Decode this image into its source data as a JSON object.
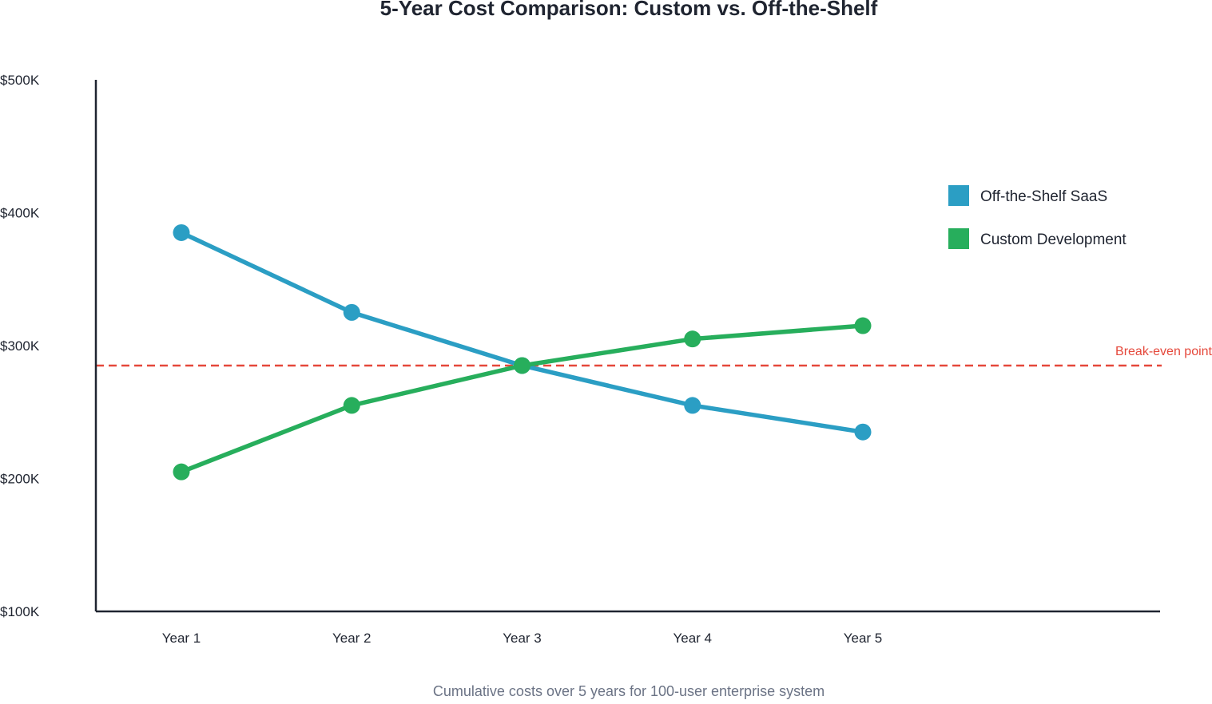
{
  "chart_data": {
    "type": "line",
    "title": "5-Year Cost Comparison: Custom vs. Off-the-Shelf",
    "caption": "Cumulative costs over 5 years for 100-user enterprise system",
    "xlabel": "",
    "ylabel": "",
    "categories": [
      "Year 1",
      "Year 2",
      "Year 3",
      "Year 4",
      "Year 5"
    ],
    "y_ticks": [
      {
        "value": 100000,
        "label": "$100K"
      },
      {
        "value": 200000,
        "label": "$200K"
      },
      {
        "value": 300000,
        "label": "$300K"
      },
      {
        "value": 400000,
        "label": "$400K"
      },
      {
        "value": 500000,
        "label": "$500K"
      }
    ],
    "ylim": [
      100000,
      500000
    ],
    "grid": false,
    "legend_position": "top-right",
    "series": [
      {
        "name": "Off-the-Shelf SaaS",
        "color": "#2b9ec4",
        "values": [
          385000,
          325000,
          285000,
          255000,
          235000
        ]
      },
      {
        "name": "Custom Development",
        "color": "#27ae5c",
        "values": [
          205000,
          255000,
          285000,
          305000,
          315000
        ]
      }
    ],
    "reference_line": {
      "label": "Break-even point",
      "value": 285000,
      "color": "#e5483b",
      "style": "dashed"
    },
    "axis_color": "#1f2430"
  }
}
